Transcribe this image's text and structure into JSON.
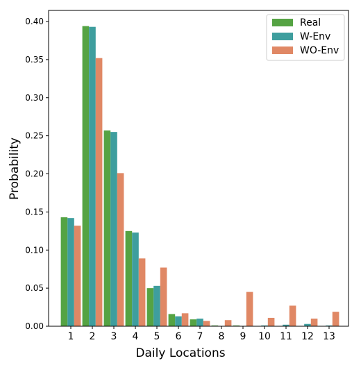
{
  "chart_data": {
    "type": "bar",
    "title": "",
    "xlabel": "Daily Locations",
    "ylabel": "Probability",
    "categories": [
      "1",
      "2",
      "3",
      "4",
      "5",
      "6",
      "7",
      "8",
      "9",
      "10",
      "11",
      "12",
      "13"
    ],
    "series": [
      {
        "name": "Real",
        "color": "#55a343",
        "values": [
          0.143,
          0.394,
          0.257,
          0.125,
          0.05,
          0.016,
          0.009,
          0.001,
          0.001,
          0.0,
          0.0,
          0.0,
          0.0
        ]
      },
      {
        "name": "W-Env",
        "color": "#3e9e9e",
        "values": [
          0.142,
          0.393,
          0.255,
          0.123,
          0.053,
          0.013,
          0.01,
          0.0,
          0.0,
          0.001,
          0.002,
          0.003,
          0.001
        ]
      },
      {
        "name": "WO-Env",
        "color": "#e08865",
        "values": [
          0.132,
          0.352,
          0.201,
          0.089,
          0.077,
          0.017,
          0.007,
          0.008,
          0.045,
          0.011,
          0.027,
          0.01,
          0.019
        ]
      }
    ],
    "ylim": [
      0,
      0.4
    ],
    "yticks": [
      "0.00",
      "0.05",
      "0.10",
      "0.15",
      "0.20",
      "0.25",
      "0.30",
      "0.35",
      "0.40"
    ],
    "legend_position": "top-right",
    "grid": false
  }
}
